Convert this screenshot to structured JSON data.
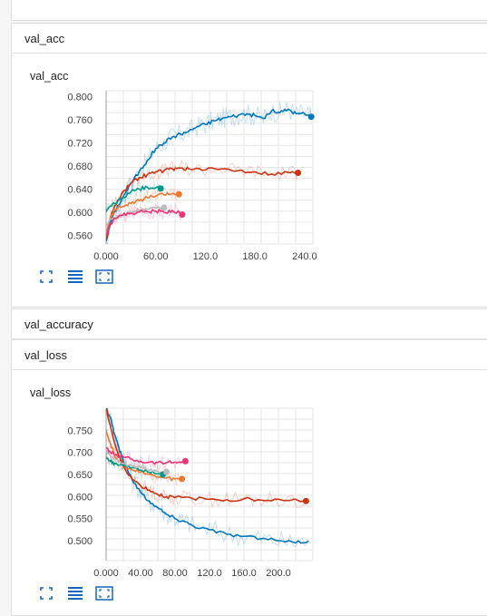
{
  "sections": {
    "val_acc": {
      "header": "val_acc",
      "chart_title": "val_acc"
    },
    "val_accuracy": {
      "header": "val_accuracy"
    },
    "val_loss": {
      "header": "val_loss",
      "chart_title": "val_loss"
    }
  },
  "icons": [
    "fit-domain-icon",
    "toggle-log-scale-icon",
    "expand-chart-icon"
  ],
  "colors": {
    "blue": "#0077bb",
    "red": "#cc3311",
    "orange": "#ee7733",
    "teal": "#009988",
    "magenta": "#ee3377",
    "gray": "#bbbbbb",
    "icon": "#1565c0"
  },
  "chart_data": [
    {
      "type": "line",
      "title": "val_acc",
      "xlim": [
        0,
        250
      ],
      "ylim": [
        0.545,
        0.81
      ],
      "xticks": [
        "0.000",
        "60.00",
        "120.0",
        "180.0",
        "240.0"
      ],
      "xtick_values": [
        0,
        60,
        120,
        180,
        240
      ],
      "yticks": [
        "0.560",
        "0.600",
        "0.640",
        "0.680",
        "0.720",
        "0.760",
        "0.800"
      ],
      "ytick_values": [
        0.56,
        0.6,
        0.64,
        0.68,
        0.72,
        0.76,
        0.8
      ],
      "grid": true,
      "series": [
        {
          "color": "#0077bb",
          "end_marker": true,
          "x": [
            0,
            5,
            10,
            20,
            30,
            40,
            50,
            60,
            70,
            80,
            90,
            100,
            110,
            120,
            130,
            140,
            150,
            160,
            170,
            180,
            190,
            200,
            210,
            220,
            230,
            240,
            248
          ],
          "y": [
            0.55,
            0.58,
            0.6,
            0.625,
            0.65,
            0.67,
            0.69,
            0.71,
            0.72,
            0.73,
            0.735,
            0.74,
            0.748,
            0.752,
            0.758,
            0.762,
            0.765,
            0.768,
            0.77,
            0.767,
            0.762,
            0.775,
            0.772,
            0.778,
            0.77,
            0.77,
            0.765
          ]
        },
        {
          "color": "#cc3311",
          "end_marker": true,
          "x": [
            0,
            5,
            10,
            20,
            30,
            40,
            50,
            60,
            70,
            80,
            90,
            100,
            120,
            140,
            160,
            180,
            200,
            220,
            232
          ],
          "y": [
            0.55,
            0.59,
            0.61,
            0.635,
            0.65,
            0.66,
            0.665,
            0.67,
            0.672,
            0.675,
            0.676,
            0.675,
            0.673,
            0.675,
            0.672,
            0.67,
            0.666,
            0.669,
            0.668
          ]
        },
        {
          "color": "#ee7733",
          "end_marker": true,
          "x": [
            0,
            5,
            10,
            20,
            30,
            40,
            50,
            60,
            70,
            80,
            88
          ],
          "y": [
            0.56,
            0.59,
            0.605,
            0.61,
            0.615,
            0.62,
            0.625,
            0.628,
            0.63,
            0.632,
            0.631
          ]
        },
        {
          "color": "#009988",
          "end_marker": true,
          "x": [
            0,
            5,
            10,
            20,
            30,
            40,
            50,
            60,
            66
          ],
          "y": [
            0.6,
            0.61,
            0.615,
            0.625,
            0.635,
            0.64,
            0.643,
            0.642,
            0.641
          ]
        },
        {
          "color": "#bbbbbb",
          "end_marker": true,
          "x": [
            0,
            10,
            20,
            30,
            40,
            50,
            60,
            70
          ],
          "y": [
            0.58,
            0.59,
            0.595,
            0.6,
            0.603,
            0.605,
            0.607,
            0.608
          ]
        },
        {
          "color": "#ee3377",
          "end_marker": true,
          "x": [
            0,
            5,
            10,
            20,
            30,
            40,
            50,
            60,
            70,
            80,
            92
          ],
          "y": [
            0.56,
            0.58,
            0.59,
            0.595,
            0.598,
            0.6,
            0.601,
            0.602,
            0.6,
            0.603,
            0.596
          ]
        }
      ]
    },
    {
      "type": "line",
      "title": "val_loss",
      "xlim": [
        0,
        240
      ],
      "ylim": [
        0.455,
        0.8
      ],
      "xticks": [
        "0.000",
        "40.00",
        "80.00",
        "120.0",
        "160.0",
        "200.0"
      ],
      "xtick_values": [
        0,
        40,
        80,
        120,
        160,
        200
      ],
      "yticks": [
        "0.500",
        "0.550",
        "0.600",
        "0.650",
        "0.700",
        "0.750"
      ],
      "ytick_values": [
        0.5,
        0.55,
        0.6,
        0.65,
        0.7,
        0.75
      ],
      "grid": true,
      "series": [
        {
          "color": "#0077bb",
          "end_marker": false,
          "x": [
            0,
            5,
            10,
            15,
            20,
            30,
            40,
            50,
            60,
            70,
            80,
            90,
            100,
            120,
            140,
            160,
            180,
            200,
            220,
            235
          ],
          "y": [
            0.8,
            0.78,
            0.74,
            0.71,
            0.68,
            0.64,
            0.61,
            0.59,
            0.575,
            0.56,
            0.55,
            0.545,
            0.535,
            0.525,
            0.515,
            0.51,
            0.505,
            0.5,
            0.495,
            0.5
          ]
        },
        {
          "color": "#cc3311",
          "end_marker": true,
          "x": [
            0,
            5,
            10,
            15,
            20,
            30,
            40,
            50,
            60,
            70,
            80,
            100,
            120,
            140,
            160,
            180,
            200,
            232
          ],
          "y": [
            0.8,
            0.76,
            0.72,
            0.69,
            0.67,
            0.64,
            0.625,
            0.615,
            0.605,
            0.6,
            0.598,
            0.596,
            0.594,
            0.593,
            0.595,
            0.592,
            0.594,
            0.59
          ]
        },
        {
          "color": "#ee7733",
          "end_marker": true,
          "x": [
            0,
            5,
            10,
            20,
            30,
            40,
            50,
            60,
            70,
            80,
            88
          ],
          "y": [
            0.75,
            0.72,
            0.69,
            0.67,
            0.66,
            0.655,
            0.65,
            0.645,
            0.642,
            0.64,
            0.64
          ]
        },
        {
          "color": "#009988",
          "end_marker": true,
          "x": [
            0,
            5,
            10,
            20,
            30,
            40,
            50,
            60,
            66
          ],
          "y": [
            0.69,
            0.68,
            0.675,
            0.67,
            0.665,
            0.66,
            0.655,
            0.652,
            0.65
          ]
        },
        {
          "color": "#bbbbbb",
          "end_marker": true,
          "x": [
            0,
            10,
            20,
            30,
            40,
            50,
            60,
            70
          ],
          "y": [
            0.7,
            0.685,
            0.675,
            0.67,
            0.665,
            0.66,
            0.658,
            0.656
          ]
        },
        {
          "color": "#ee3377",
          "end_marker": true,
          "x": [
            0,
            5,
            10,
            20,
            30,
            40,
            50,
            60,
            70,
            80,
            92
          ],
          "y": [
            0.71,
            0.7,
            0.695,
            0.69,
            0.685,
            0.68,
            0.678,
            0.677,
            0.677,
            0.678,
            0.68
          ]
        }
      ]
    }
  ]
}
